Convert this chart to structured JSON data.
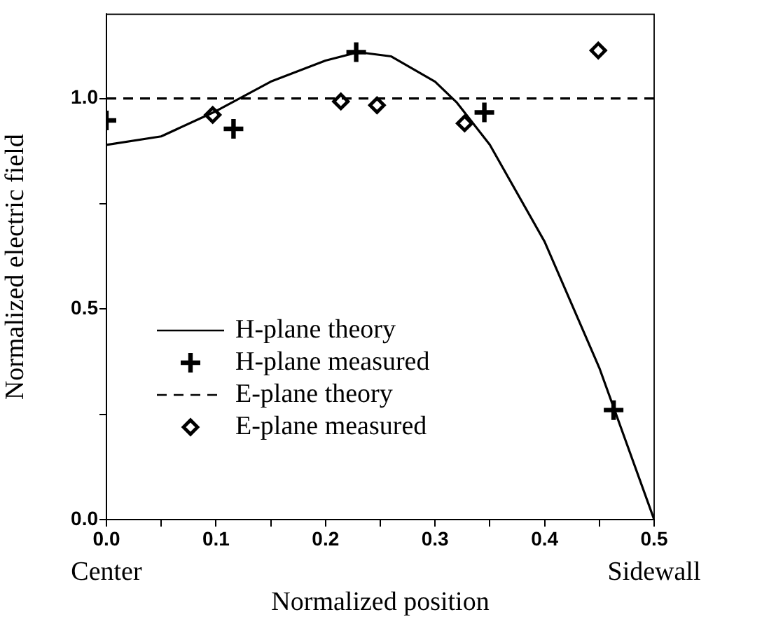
{
  "chart_data": {
    "type": "line",
    "xlabel": "Normalized position",
    "ylabel": "Normalized electric field",
    "xlim": [
      0,
      0.5
    ],
    "ylim": [
      0,
      1.2
    ],
    "xticks": [
      {
        "value": 0,
        "label": "0.0"
      },
      {
        "value": 0.05,
        "label": null
      },
      0.1,
      {
        "value": 0.15,
        "label": null
      },
      0.2,
      {
        "value": 0.25,
        "label": null
      },
      0.3,
      {
        "value": 0.35,
        "label": null
      },
      0.4,
      {
        "value": 0.45,
        "label": null
      },
      0.5
    ],
    "yticks": [
      {
        "value": 0,
        "label": "0.0"
      },
      {
        "value": 0.25,
        "label": null
      },
      0.5,
      {
        "value": 0.75,
        "label": null
      },
      {
        "value": 1,
        "label": "1.0"
      }
    ],
    "grid": false,
    "legend": "bottom left",
    "annotations": [
      {
        "text": "Center",
        "x": 0
      },
      {
        "text": "Sidewall",
        "x": 0.5
      }
    ],
    "series": [
      {
        "name": "H-plane theory",
        "color": "#000000",
        "marker": "none",
        "line_style": "solid",
        "x": [
          0,
          0.05,
          0.1,
          0.15,
          0.2,
          0.23,
          0.26,
          0.3,
          0.32,
          0.35,
          0.4,
          0.45,
          0.5
        ],
        "values": [
          0.89,
          0.91,
          0.97,
          1.04,
          1.09,
          1.11,
          1.1,
          1.04,
          0.99,
          0.89,
          0.66,
          0.36,
          0
        ]
      },
      {
        "name": "H-plane measured",
        "type": "scatter",
        "color": "#000000",
        "marker": "cross",
        "x": [
          0,
          0.116,
          0.228,
          0.345,
          0.463
        ],
        "values": [
          0.948,
          0.928,
          1.11,
          0.967,
          0.26
        ]
      },
      {
        "name": "E-plane theory",
        "color": "#000000",
        "marker": "none",
        "line_style": "dashed",
        "x": [
          0,
          0.5
        ],
        "values": [
          1,
          1
        ]
      },
      {
        "name": "E-plane measured",
        "type": "scatter",
        "color": "#000000",
        "marker": "diamond",
        "x": [
          0.097,
          0.214,
          0.247,
          0.327,
          0.449
        ],
        "values": [
          0.961,
          0.993,
          0.984,
          0.941,
          1.114
        ]
      }
    ]
  }
}
